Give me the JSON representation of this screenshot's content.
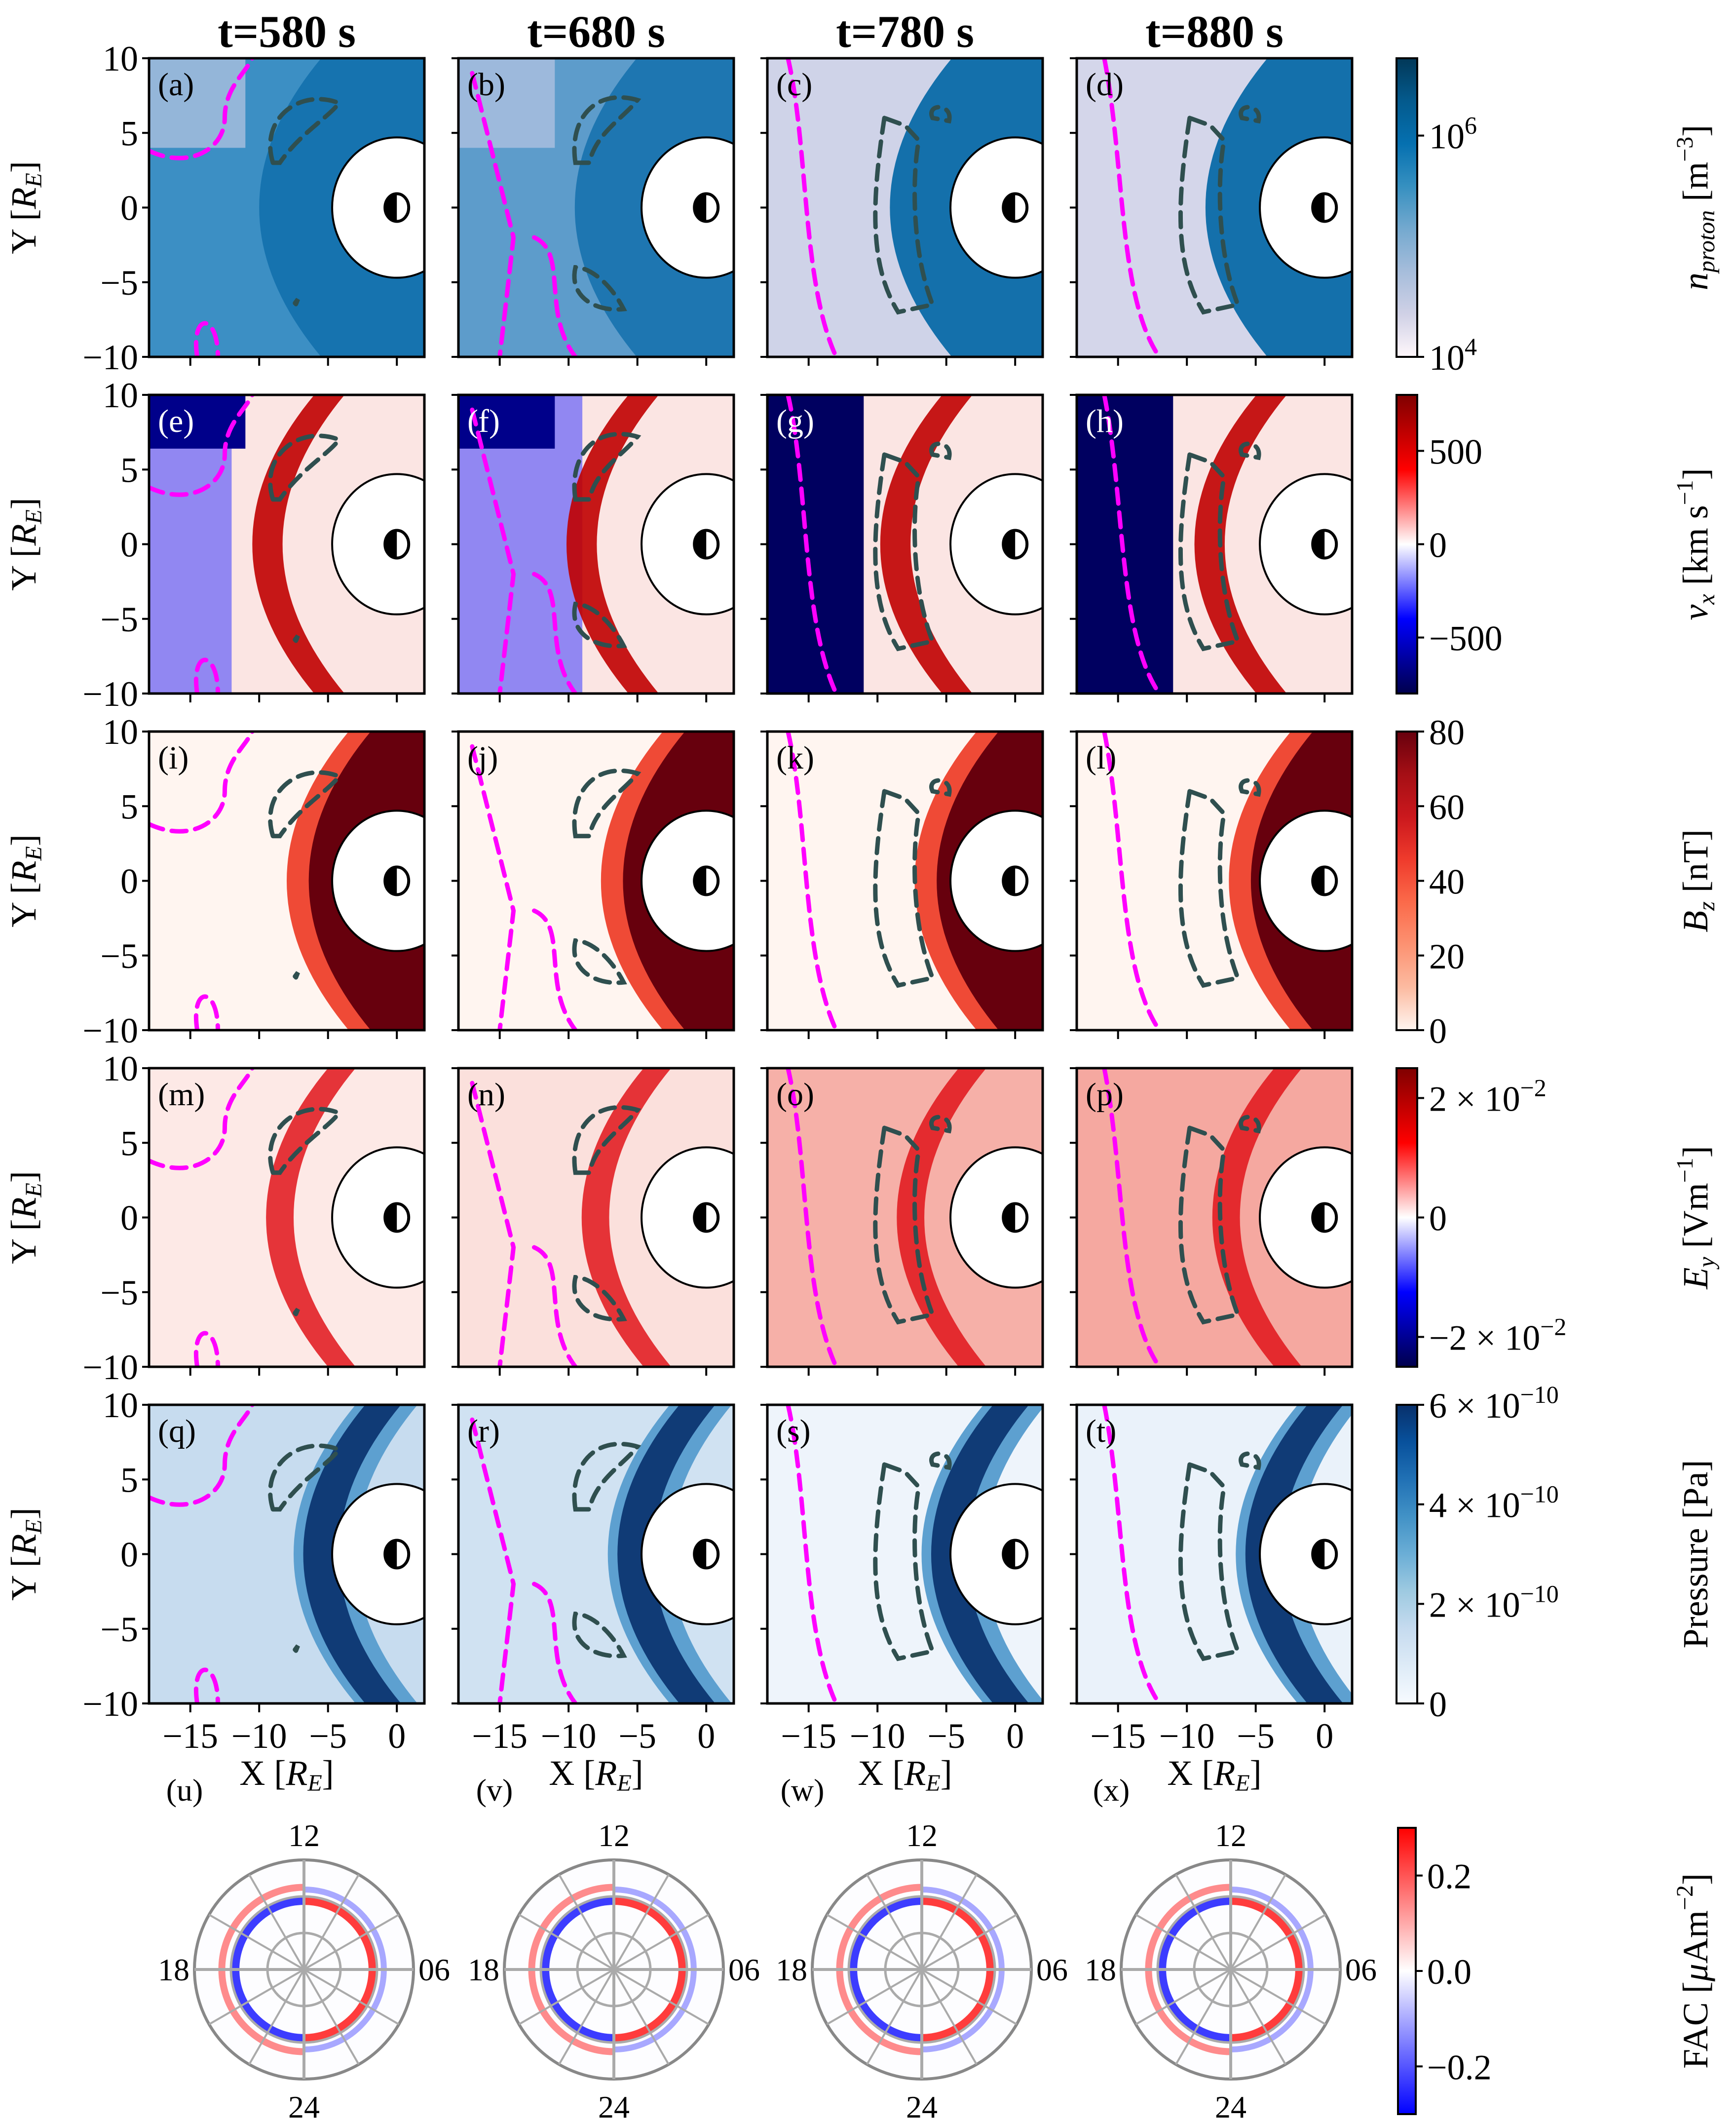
{
  "chart_data": {
    "type": "heatmap",
    "title": "",
    "column_titles": [
      "t=580 s",
      "t=680 s",
      "t=780 s",
      "t=880 s"
    ],
    "times_s": [
      580,
      680,
      780,
      880
    ],
    "xlabel": "X [R_E]",
    "ylabel": "Y [R_E]",
    "xlim": [
      -18,
      2
    ],
    "ylim": [
      -10,
      10
    ],
    "x_ticks": [
      -15,
      -10,
      -5,
      0
    ],
    "x_tick_labels": [
      "−15",
      "−10",
      "−5",
      "0"
    ],
    "y_ticks": [
      -10,
      -5,
      0,
      5,
      10
    ],
    "y_tick_labels": [
      "−10",
      "−5",
      "0",
      "5",
      "10"
    ],
    "grid": false,
    "inner_boundary_radius_RE": 4.7,
    "contours": {
      "magenta_dashed": "magenta dashed contour",
      "darkslate_dashed": "dark slate-gray dashed contour"
    },
    "rows": [
      {
        "key": "density",
        "letters": [
          "(a)",
          "(b)",
          "(c)",
          "(d)"
        ],
        "colorbar_label": "n_proton [m^-3]",
        "colorbar_label_main": "n",
        "colorbar_label_sub": "proton",
        "colorbar_label_unit": " [m",
        "colorbar_label_sup": "−3",
        "colorbar_label_close": "]",
        "scale": "log",
        "range": [
          10000,
          5000000
        ],
        "colorbar_ticks": [
          {
            "value": 1000000,
            "base": "10",
            "exp": "6"
          },
          {
            "value": 10000,
            "base": "10",
            "exp": "4"
          }
        ],
        "colormap": [
          "#fff7fb",
          "#d0d1e6",
          "#a6bddb",
          "#74a9cf",
          "#3690c0",
          "#0570b0",
          "#045a8d",
          "#023858"
        ]
      },
      {
        "key": "vx",
        "letters": [
          "(e)",
          "(f)",
          "(g)",
          "(h)"
        ],
        "colorbar_label": "v_x [km s^-1]",
        "colorbar_label_main": "v",
        "colorbar_label_sub": "x",
        "colorbar_label_unit": " [km s",
        "colorbar_label_sup": "−1",
        "colorbar_label_close": "]",
        "scale": "linear",
        "range": [
          -800,
          800
        ],
        "colorbar_ticks": [
          {
            "value": 500,
            "text": "500"
          },
          {
            "value": 0,
            "text": "0"
          },
          {
            "value": -500,
            "text": "−500"
          }
        ],
        "colormap": [
          "#00004c",
          "#0000ff",
          "#ffffff",
          "#ff0000",
          "#7f0000"
        ]
      },
      {
        "key": "bz",
        "letters": [
          "(i)",
          "(j)",
          "(k)",
          "(l)"
        ],
        "colorbar_label": "B_z [nT]",
        "colorbar_label_main": "B",
        "colorbar_label_sub": "z",
        "colorbar_label_unit": " [nT",
        "colorbar_label_sup": "",
        "colorbar_label_close": "]",
        "scale": "linear",
        "range": [
          0,
          80
        ],
        "colorbar_ticks": [
          {
            "value": 80,
            "text": "80"
          },
          {
            "value": 60,
            "text": "60"
          },
          {
            "value": 40,
            "text": "40"
          },
          {
            "value": 20,
            "text": "20"
          },
          {
            "value": 0,
            "text": "0"
          }
        ],
        "colormap": [
          "#fff5f0",
          "#fcbba1",
          "#fc9272",
          "#fb6a4a",
          "#ef3b2c",
          "#cb181d",
          "#a50f15",
          "#67000d"
        ]
      },
      {
        "key": "ey",
        "letters": [
          "(m)",
          "(n)",
          "(o)",
          "(p)"
        ],
        "colorbar_label": "E_y [Vm^-1]",
        "colorbar_label_main": "E",
        "colorbar_label_sub": "y",
        "colorbar_label_unit": " [Vm",
        "colorbar_label_sup": "−1",
        "colorbar_label_close": "]",
        "scale": "linear",
        "range": [
          -0.025,
          0.025
        ],
        "colorbar_ticks": [
          {
            "value": 0.02,
            "text": "2 × 10",
            "exp": "−2"
          },
          {
            "value": 0,
            "text": "0"
          },
          {
            "value": -0.02,
            "text": "−2 × 10",
            "exp": "−2"
          }
        ],
        "colormap": [
          "#00004c",
          "#0000ff",
          "#ffffff",
          "#ff0000",
          "#7f0000"
        ]
      },
      {
        "key": "pressure",
        "letters": [
          "(q)",
          "(r)",
          "(s)",
          "(t)"
        ],
        "colorbar_label": "Pressure [Pa]",
        "colorbar_label_main": "Pressure [Pa]",
        "colorbar_label_sub": "",
        "colorbar_label_unit": "",
        "colorbar_label_sup": "",
        "colorbar_label_close": "",
        "scale": "linear",
        "range": [
          0,
          6e-10
        ],
        "colorbar_ticks": [
          {
            "value": 6e-10,
            "text": "6 × 10",
            "exp": "−10"
          },
          {
            "value": 4e-10,
            "text": "4 × 10",
            "exp": "−10"
          },
          {
            "value": 2e-10,
            "text": "2 × 10",
            "exp": "−10"
          },
          {
            "value": 0,
            "text": "0"
          }
        ],
        "colormap": [
          "#f7fbff",
          "#deebf7",
          "#c6dbef",
          "#9ecae1",
          "#6baed6",
          "#4292c6",
          "#2171b5",
          "#08519c",
          "#08306b"
        ]
      }
    ],
    "polar": {
      "type": "polar-heatmap",
      "letters": [
        "(u)",
        "(v)",
        "(w)",
        "(x)"
      ],
      "mlt_labels": {
        "top": "12",
        "left": "18",
        "right": "06",
        "bottom": "24"
      },
      "colorbar_label": "FAC [μAm^-2]",
      "colorbar_label_main": "FAC [",
      "colorbar_label_mu": "μ",
      "colorbar_label_unit": "Am",
      "colorbar_label_sup": "−2",
      "colorbar_label_close": "]",
      "range": [
        -0.3,
        0.3
      ],
      "colorbar_ticks": [
        {
          "value": 0.2,
          "text": "0.2"
        },
        {
          "value": 0.0,
          "text": "0.0"
        },
        {
          "value": -0.2,
          "text": "−0.2"
        }
      ],
      "colormap": [
        "#0000ff",
        "#ffffff",
        "#ff0000"
      ]
    }
  }
}
